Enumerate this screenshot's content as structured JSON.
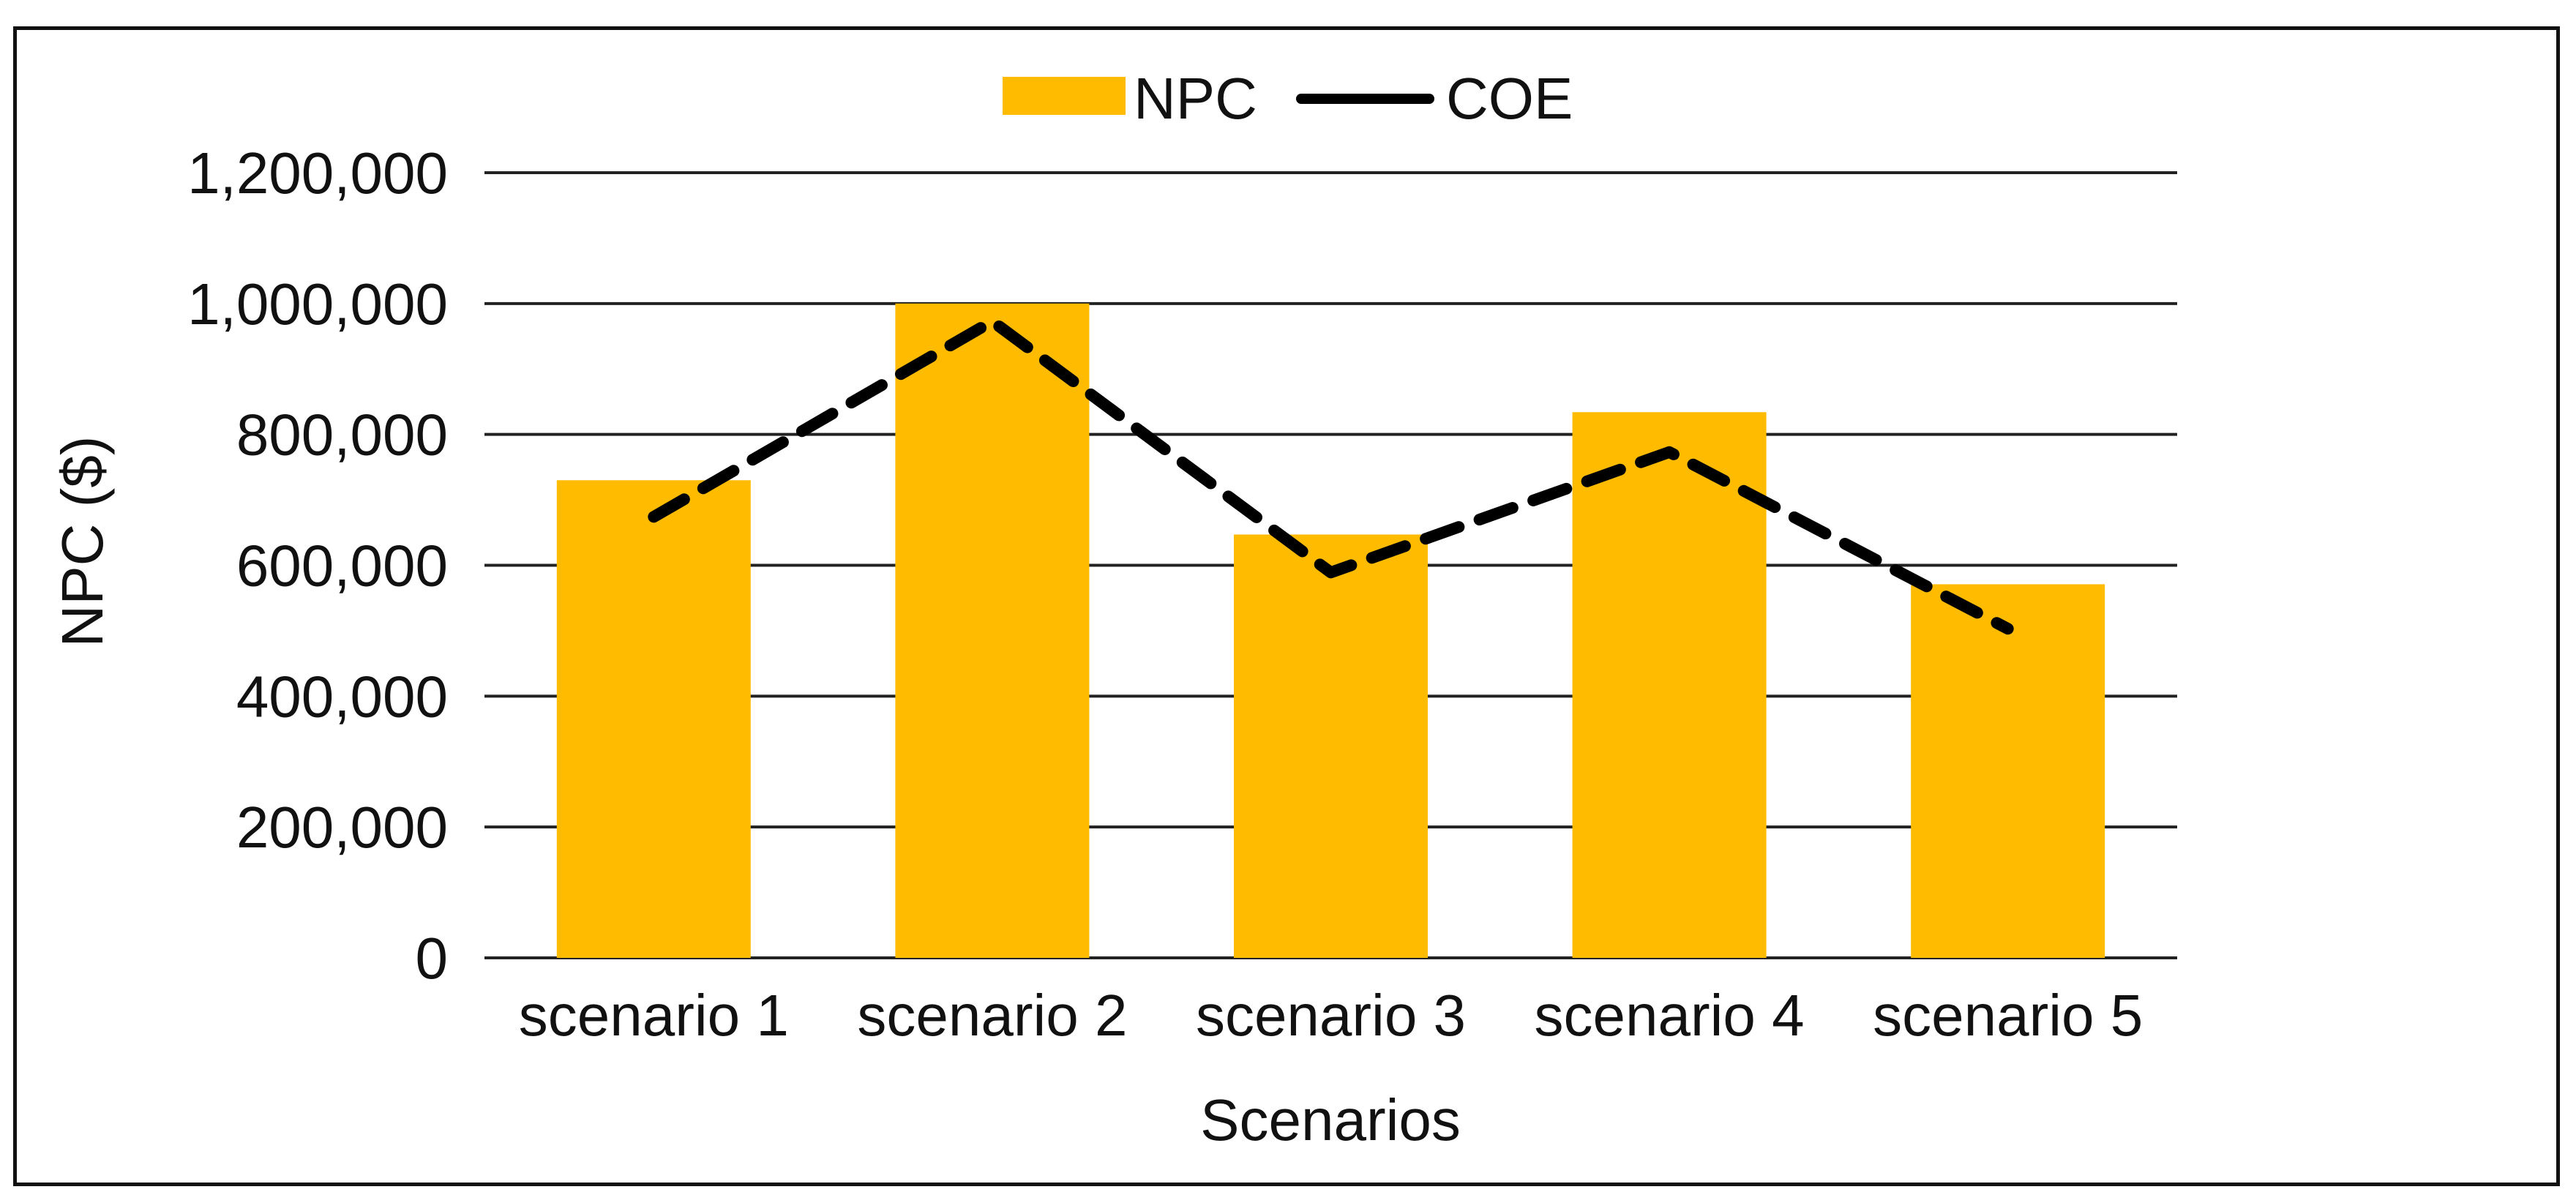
{
  "chart_data": {
    "type": "bar",
    "title": "",
    "xlabel": "Scenarios",
    "ylabel": "NPC ($)",
    "ylim": [
      0,
      1200000
    ],
    "yticks": [
      0,
      200000,
      400000,
      600000,
      800000,
      1000000,
      1200000
    ],
    "ytick_labels": [
      "0",
      "200,000",
      "400,000",
      "600,000",
      "800,000",
      "1,000,000",
      "1,200,000"
    ],
    "grid": true,
    "legend_position": "top-center",
    "categories": [
      "scenario 1",
      "scenario 2",
      "scenario 3",
      "scenario 4",
      "scenario 5"
    ],
    "series": [
      {
        "name": "NPC",
        "type": "bar",
        "color": "#FFBB00",
        "values": [
          730000,
          1000000,
          647000,
          834000,
          571000
        ]
      },
      {
        "name": "COE",
        "type": "line",
        "style": "dashed",
        "color": "#000000",
        "values": [
          674000,
          973000,
          589000,
          773000,
          503000
        ]
      }
    ]
  }
}
